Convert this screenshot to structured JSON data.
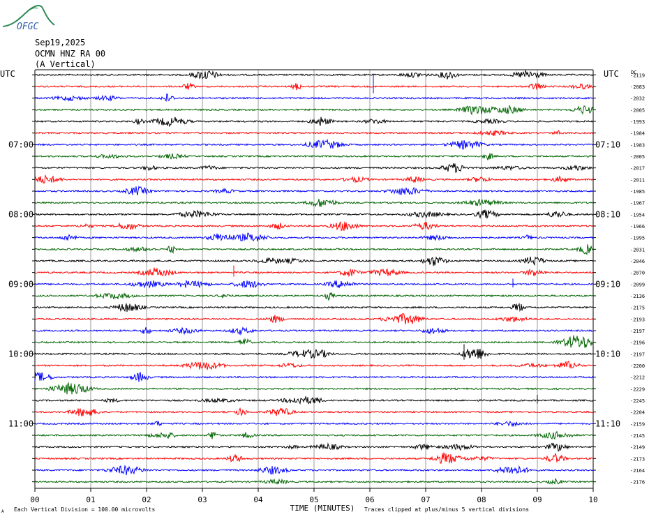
{
  "logo": {
    "text": "OFGC",
    "color": "#2d8a57",
    "text_color": "#2f5fa8"
  },
  "header": {
    "date": "Sep19,2025",
    "station": "OCMN HNZ RA 00",
    "component": "(A Vertical)"
  },
  "chart_data": {
    "type": "line",
    "chart_kind": "helicorder",
    "left_axis_label": "UTC",
    "right_axis_label": "UTC",
    "dc_label": "DC",
    "xlabel": "TIME (MINUTES)",
    "x_ticks": [
      "00",
      "01",
      "02",
      "03",
      "04",
      "05",
      "06",
      "07",
      "08",
      "09",
      "10"
    ],
    "xlim": [
      0,
      10
    ],
    "grid": true,
    "left_hour_labels": [
      {
        "row": 6,
        "text": "07:00"
      },
      {
        "row": 12,
        "text": "08:00"
      },
      {
        "row": 18,
        "text": "09:00"
      },
      {
        "row": 24,
        "text": "10:00"
      },
      {
        "row": 30,
        "text": "11:00"
      }
    ],
    "right_hour_labels": [
      {
        "row": 6,
        "text": "07:10"
      },
      {
        "row": 12,
        "text": "08:10"
      },
      {
        "row": 18,
        "text": "09:10"
      },
      {
        "row": 24,
        "text": "10:10"
      },
      {
        "row": 30,
        "text": "11:10"
      }
    ],
    "trace_colors": [
      "#000000",
      "#ff0000",
      "#0000ff",
      "#006400"
    ],
    "dc_offsets": [
      "-2119",
      "-2083",
      "-2032",
      "-2005",
      "-1993",
      "-1984",
      "-1983",
      "-2005",
      "-2017",
      "-2011",
      "-1985",
      "-1967",
      "-1954",
      "-1966",
      "-1995",
      "-2031",
      "-2046",
      "-2070",
      "-2099",
      "-2136",
      "-2175",
      "-2193",
      "-2197",
      "-2196",
      "-2197",
      "-2200",
      "-2212",
      "-2229",
      "-2245",
      "-2204",
      "-2159",
      "-2145",
      "-2149",
      "-2173",
      "-2164",
      "-2176"
    ],
    "footer_left": "Each Vertical Division =  100.00 microvolts",
    "footer_right": "Traces clipped at plus/minus 5 vertical divisions",
    "footer_mark": "A"
  }
}
